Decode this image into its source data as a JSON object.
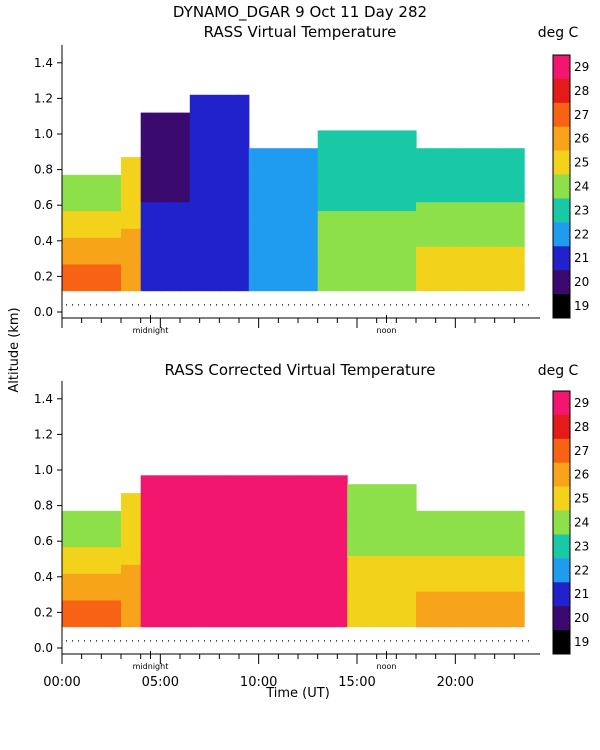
{
  "header": {
    "title": "DYNAMO_DGAR    9 Oct 11 Day 282"
  },
  "y_axis_label": "Altitude (km)",
  "x_axis_label": "Time (UT)",
  "chart_data": [
    {
      "type": "heatmap",
      "title": "RASS Virtual Temperature",
      "units": "deg C",
      "xlabel": "",
      "ylabel": "Altitude (km)",
      "xlim": [
        0,
        24
      ],
      "ylim": [
        0.0,
        1.5
      ],
      "y_ticks": [
        "0.0",
        "0.2",
        "0.4",
        "0.6",
        "0.8",
        "1.0",
        "1.2",
        "1.4"
      ],
      "x_ticks": [],
      "markers": [
        {
          "label": "midnight",
          "hour": 4.5
        },
        {
          "label": "noon",
          "hour": 16.5
        }
      ],
      "colorbar": {
        "min": 19,
        "max": 29,
        "ticks": [
          "29",
          "28",
          "27",
          "26",
          "25",
          "24",
          "23",
          "22",
          "21",
          "20",
          "19"
        ]
      },
      "data_floor_km": 0.12,
      "profile": [
        {
          "h_start": 0.0,
          "h_end": 3.0,
          "v0": 28,
          "v1": 24,
          "top": 0.75
        },
        {
          "h_start": 3.0,
          "h_end": 4.2,
          "v0": 27,
          "v1": 25,
          "top": 0.85
        },
        {
          "h_start": 4.2,
          "h_end": 6.5,
          "v0": 22,
          "v1": 20,
          "top": 1.1
        },
        {
          "h_start": 6.5,
          "h_end": 9.5,
          "v0": 22,
          "v1": 21,
          "top": 1.2
        },
        {
          "h_start": 9.5,
          "h_end": 13.0,
          "v0": 23,
          "v1": 22,
          "top": 0.9
        },
        {
          "h_start": 13.0,
          "h_end": 18.0,
          "v0": 25,
          "v1": 23,
          "top": 1.0
        },
        {
          "h_start": 18.0,
          "h_end": 23.6,
          "v0": 26,
          "v1": 23,
          "top": 0.9
        }
      ]
    },
    {
      "type": "heatmap",
      "title": "RASS Corrected Virtual Temperature",
      "units": "deg C",
      "xlabel": "Time (UT)",
      "ylabel": "Altitude (km)",
      "xlim": [
        0,
        24
      ],
      "ylim": [
        0.0,
        1.5
      ],
      "y_ticks": [
        "0.0",
        "0.2",
        "0.4",
        "0.6",
        "0.8",
        "1.0",
        "1.2",
        "1.4"
      ],
      "x_ticks": [
        "00:00",
        "05:00",
        "10:00",
        "15:00",
        "20:00"
      ],
      "markers": [
        {
          "label": "midnight",
          "hour": 4.5
        },
        {
          "label": "noon",
          "hour": 16.5
        }
      ],
      "colorbar": {
        "min": 19,
        "max": 29,
        "ticks": [
          "29",
          "28",
          "27",
          "26",
          "25",
          "24",
          "23",
          "22",
          "21",
          "20",
          "19"
        ]
      },
      "data_floor_km": 0.12,
      "profile": [
        {
          "h_start": 0.0,
          "h_end": 3.0,
          "v0": 28,
          "v1": 24,
          "top": 0.75
        },
        {
          "h_start": 3.0,
          "h_end": 4.2,
          "v0": 27,
          "v1": 25,
          "top": 0.85
        },
        {
          "h_start": 4.2,
          "h_end": 14.5,
          "v0": 29.5,
          "v1": 29.5,
          "top": 0.95
        },
        {
          "h_start": 14.5,
          "h_end": 18.0,
          "v0": 26,
          "v1": 24,
          "top": 0.9
        },
        {
          "h_start": 18.0,
          "h_end": 23.6,
          "v0": 27,
          "v1": 24,
          "top": 0.75
        }
      ]
    }
  ]
}
